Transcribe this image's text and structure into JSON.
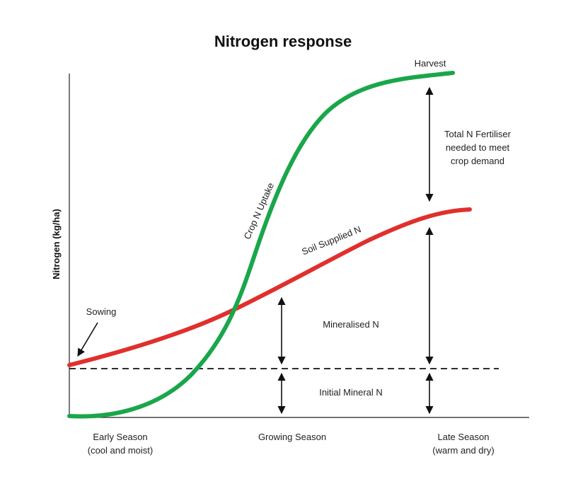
{
  "title": "Nitrogen response",
  "y_axis_label": "Nitrogen (kg/ha)",
  "x_axis": {
    "early": {
      "line1": "Early Season",
      "line2": "(cool and moist)"
    },
    "growing": "Growing Season",
    "late": {
      "line1": "Late Season",
      "line2": "(warm and dry)"
    }
  },
  "curves": {
    "crop": {
      "label": "Crop N Uptake",
      "color": "#1aa64a"
    },
    "soil": {
      "label": "Soil Supplied N",
      "color": "#e0302d"
    }
  },
  "annotations": {
    "harvest": "Harvest",
    "sowing": "Sowing",
    "total_fert": [
      "Total N Fertiliser",
      "needed to meet",
      "crop demand"
    ],
    "mineralised": "Mineralised N",
    "initial": "Initial Mineral N"
  },
  "baseline": {
    "style": "dashed",
    "color": "#111111"
  }
}
